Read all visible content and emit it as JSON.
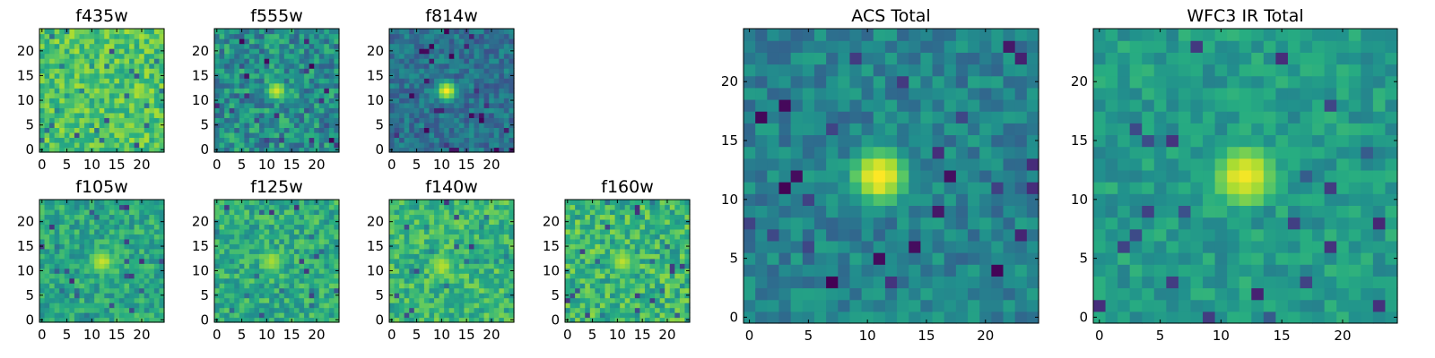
{
  "figure": {
    "colormap": [
      "#440154",
      "#472c7a",
      "#3b518b",
      "#2c718e",
      "#21908d",
      "#27ad81",
      "#5cc863",
      "#aadc32",
      "#fde725"
    ]
  },
  "chart_data": [
    {
      "type": "heatmap",
      "title": "f435w",
      "grid_size": 25,
      "xlim": [
        0,
        24
      ],
      "ylim": [
        0,
        24
      ],
      "x_ticks": [
        0,
        5,
        10,
        15,
        20
      ],
      "y_ticks": [
        0,
        5,
        10,
        15,
        20
      ],
      "source_center": [
        11,
        12
      ],
      "source_radius": 2,
      "source_peak": 0.85,
      "background": 0.72,
      "noise": 0.16
    },
    {
      "type": "heatmap",
      "title": "f555w",
      "grid_size": 25,
      "xlim": [
        0,
        24
      ],
      "ylim": [
        0,
        24
      ],
      "x_ticks": [
        0,
        5,
        10,
        15,
        20
      ],
      "y_ticks": [
        0,
        5,
        10,
        15,
        20
      ],
      "source_center": [
        12,
        12
      ],
      "source_radius": 2,
      "source_peak": 0.95,
      "background": 0.5,
      "noise": 0.2
    },
    {
      "type": "heatmap",
      "title": "f814w",
      "grid_size": 25,
      "xlim": [
        0,
        24
      ],
      "ylim": [
        0,
        24
      ],
      "x_ticks": [
        0,
        5,
        10,
        15,
        20
      ],
      "y_ticks": [
        0,
        5,
        10,
        15,
        20
      ],
      "source_center": [
        11,
        12
      ],
      "source_radius": 2,
      "source_peak": 0.98,
      "background": 0.38,
      "noise": 0.14
    },
    {
      "type": "heatmap",
      "title": "f105w",
      "grid_size": 25,
      "xlim": [
        0,
        24
      ],
      "ylim": [
        0,
        24
      ],
      "x_ticks": [
        0,
        5,
        10,
        15,
        20
      ],
      "y_ticks": [
        0,
        5,
        10,
        15,
        20
      ],
      "source_center": [
        12,
        12
      ],
      "source_radius": 3,
      "source_peak": 0.92,
      "background": 0.6,
      "noise": 0.15
    },
    {
      "type": "heatmap",
      "title": "f125w",
      "grid_size": 25,
      "xlim": [
        0,
        24
      ],
      "ylim": [
        0,
        24
      ],
      "x_ticks": [
        0,
        5,
        10,
        15,
        20
      ],
      "y_ticks": [
        0,
        5,
        10,
        15,
        20
      ],
      "source_center": [
        11,
        12
      ],
      "source_radius": 3,
      "source_peak": 0.88,
      "background": 0.62,
      "noise": 0.16
    },
    {
      "type": "heatmap",
      "title": "f140w",
      "grid_size": 25,
      "xlim": [
        0,
        24
      ],
      "ylim": [
        0,
        24
      ],
      "x_ticks": [
        0,
        5,
        10,
        15,
        20
      ],
      "y_ticks": [
        0,
        5,
        10,
        15,
        20
      ],
      "source_center": [
        10,
        11
      ],
      "source_radius": 3,
      "source_peak": 0.9,
      "background": 0.66,
      "noise": 0.16
    },
    {
      "type": "heatmap",
      "title": "f160w",
      "grid_size": 25,
      "xlim": [
        0,
        24
      ],
      "ylim": [
        0,
        24
      ],
      "x_ticks": [
        0,
        5,
        10,
        15,
        20
      ],
      "y_ticks": [
        0,
        5,
        10,
        15,
        20
      ],
      "source_center": [
        11,
        12
      ],
      "source_radius": 3,
      "source_peak": 0.9,
      "background": 0.66,
      "noise": 0.18
    },
    {
      "type": "heatmap",
      "title": "ACS Total",
      "grid_size": 25,
      "xlim": [
        0,
        24
      ],
      "ylim": [
        0,
        24
      ],
      "x_ticks": [
        0,
        5,
        10,
        15,
        20
      ],
      "y_ticks": [
        0,
        5,
        10,
        15,
        20
      ],
      "source_center": [
        11,
        12
      ],
      "source_radius": 2.5,
      "source_peak": 1.0,
      "background": 0.45,
      "noise": 0.13
    },
    {
      "type": "heatmap",
      "title": "WFC3 IR Total",
      "grid_size": 25,
      "xlim": [
        0,
        24
      ],
      "ylim": [
        0,
        24
      ],
      "x_ticks": [
        0,
        5,
        10,
        15,
        20
      ],
      "y_ticks": [
        0,
        5,
        10,
        15,
        20
      ],
      "source_center": [
        12,
        12
      ],
      "source_radius": 3,
      "source_peak": 0.98,
      "background": 0.55,
      "noise": 0.11
    }
  ]
}
